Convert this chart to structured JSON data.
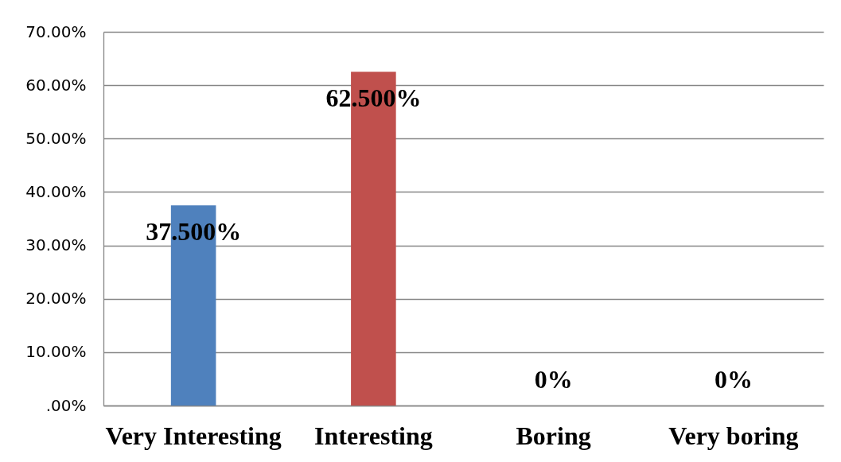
{
  "chart_data": {
    "type": "bar",
    "categories": [
      "Very Interesting",
      "Interesting",
      "Boring",
      "Very boring"
    ],
    "values": [
      37.5,
      62.5,
      0,
      0
    ],
    "colors": [
      "#4f81bd",
      "#c0504d",
      "#9bbb59",
      "#8064a2"
    ],
    "value_labels": [
      "37.500%",
      "62.500%",
      "0%",
      "0%"
    ],
    "ylim": [
      0,
      70
    ],
    "yticks": [
      {
        "value": 0,
        "label": ".00%"
      },
      {
        "value": 10,
        "label": "10.00%"
      },
      {
        "value": 20,
        "label": "20.00%"
      },
      {
        "value": 30,
        "label": "30.00%"
      },
      {
        "value": 40,
        "label": "40.00%"
      },
      {
        "value": 50,
        "label": "50.00%"
      },
      {
        "value": 60,
        "label": "60.00%"
      },
      {
        "value": 70,
        "label": "70.00%"
      }
    ],
    "grid": "y"
  }
}
